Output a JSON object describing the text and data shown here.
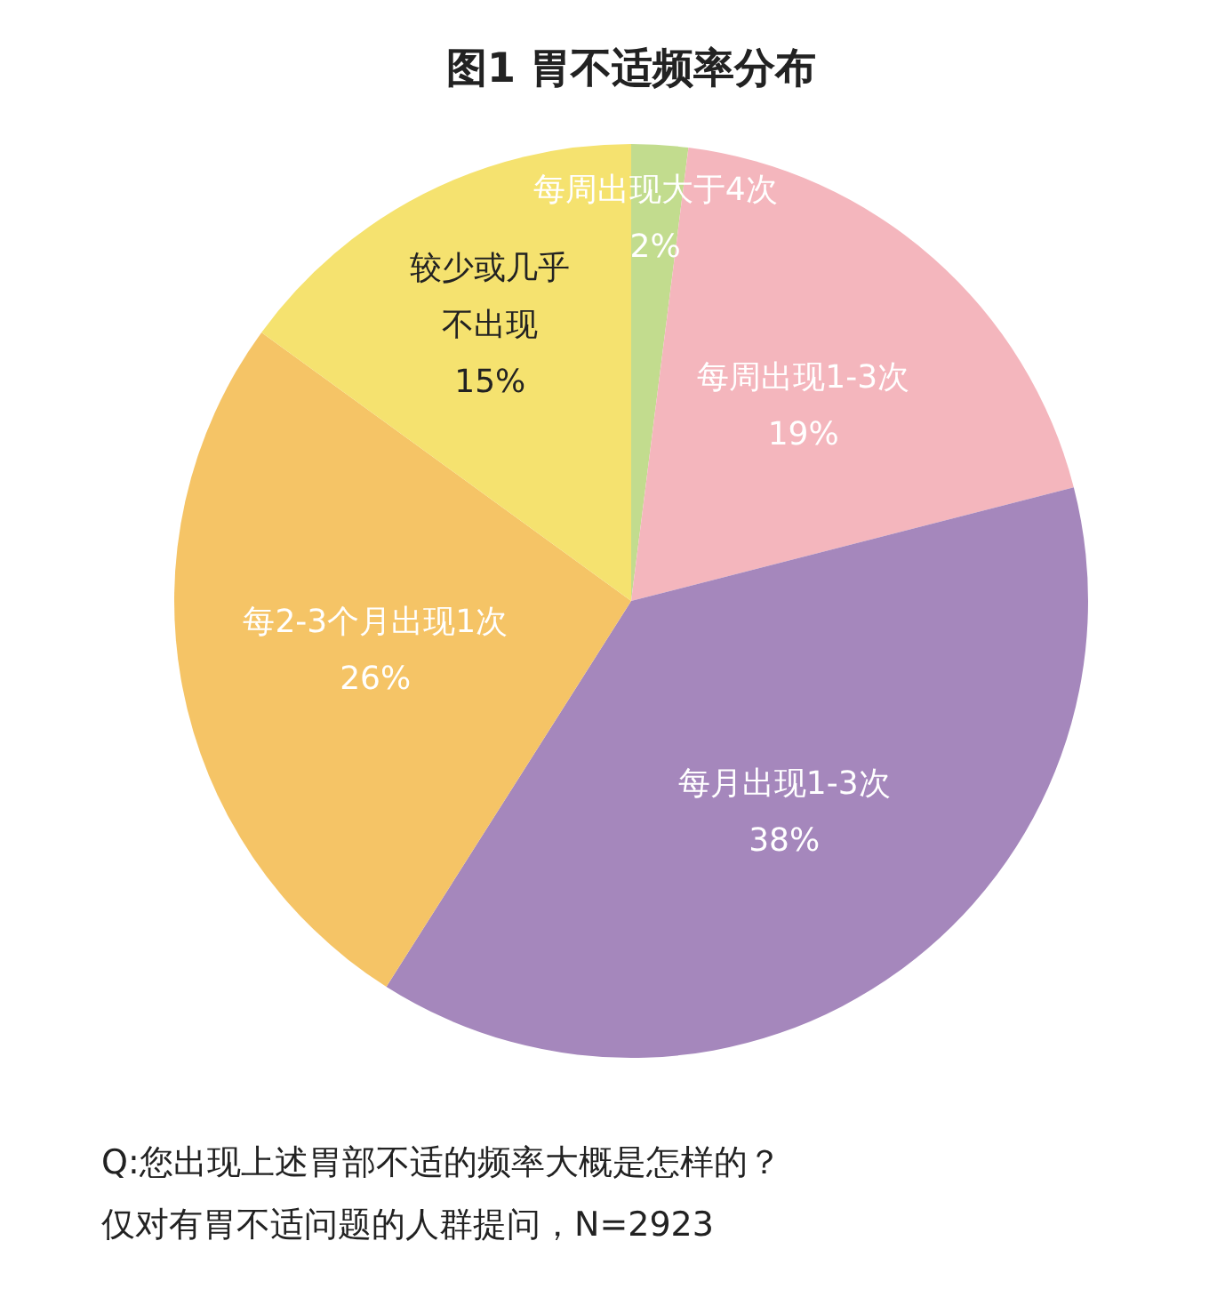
{
  "chart_data": {
    "type": "pie",
    "title": "图1 胃不适频率分布",
    "categories": [
      "每周出现大于4次",
      "每周出现1-3次",
      "每月出现1-3次",
      "每2-3个月出现1次",
      "较少或几乎不出现"
    ],
    "values": [
      2,
      19,
      38,
      26,
      15
    ],
    "colors": [
      "#c2dc8e",
      "#f4b6bd",
      "#a587bc",
      "#f5c466",
      "#f5e26f"
    ],
    "value_labels": [
      "2%",
      "19%",
      "38%",
      "26%",
      "15%"
    ],
    "annotations": [
      "Q:您出现上述胃部不适的频率大概是怎样的？",
      "仅对有胃不适问题的人群提问，N=2923"
    ]
  }
}
